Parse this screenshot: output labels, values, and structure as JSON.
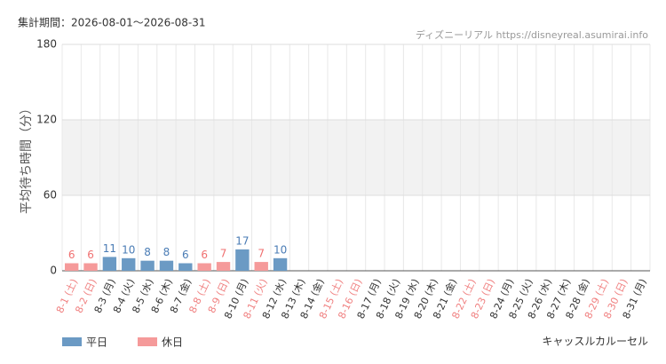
{
  "chart_data": {
    "type": "bar",
    "subtitle": "集計期間：2026-08-01～2026-08-31",
    "source": "ディズニーリアル https://disneyreal.asumirai.info",
    "attraction": "キャッスルカルーセル",
    "y_label": "平均待ち時間（分）",
    "categories": [
      "8-1 (土)",
      "8-2 (日)",
      "8-3 (月)",
      "8-4 (火)",
      "8-5 (水)",
      "8-6 (木)",
      "8-7 (金)",
      "8-8 (土)",
      "8-9 (日)",
      "8-10 (月)",
      "8-11 (火)",
      "8-12 (水)",
      "8-13 (木)",
      "8-14 (金)",
      "8-15 (土)",
      "8-16 (日)",
      "8-17 (月)",
      "8-18 (火)",
      "8-19 (水)",
      "8-20 (木)",
      "8-21 (金)",
      "8-22 (土)",
      "8-23 (日)",
      "8-24 (月)",
      "8-25 (火)",
      "8-26 (水)",
      "8-27 (木)",
      "8-28 (金)",
      "8-29 (土)",
      "8-30 (日)",
      "8-31 (月)"
    ],
    "category_label_colors": [
      "#f08080",
      "#f08080",
      "#333",
      "#333",
      "#333",
      "#333",
      "#333",
      "#f08080",
      "#f08080",
      "#333",
      "#f08080",
      "#333",
      "#333",
      "#333",
      "#f08080",
      "#f08080",
      "#333",
      "#333",
      "#333",
      "#333",
      "#333",
      "#f08080",
      "#f08080",
      "#333",
      "#333",
      "#333",
      "#333",
      "#333",
      "#f08080",
      "#f08080",
      "#333"
    ],
    "series": [
      {
        "name": "平日",
        "color": "#6b9ac4",
        "label_color": "#4a7cb5",
        "values": [
          null,
          null,
          11,
          10,
          8,
          8,
          6,
          null,
          null,
          17,
          null,
          10,
          null,
          null,
          null,
          null,
          null,
          null,
          null,
          null,
          null,
          null,
          null,
          null,
          null,
          null,
          null,
          null,
          null,
          null,
          null
        ]
      },
      {
        "name": "休日",
        "color": "#f59a9a",
        "label_color": "#f07070",
        "values": [
          6,
          6,
          null,
          null,
          null,
          null,
          null,
          6,
          7,
          null,
          7,
          null,
          null,
          null,
          null,
          null,
          null,
          null,
          null,
          null,
          null,
          null,
          null,
          null,
          null,
          null,
          null,
          null,
          null,
          null,
          null
        ]
      }
    ],
    "ylim": [
      0,
      180
    ],
    "yticks": [
      0,
      60,
      120,
      180
    ],
    "shaded_band": [
      60,
      120
    ],
    "grid": true
  }
}
